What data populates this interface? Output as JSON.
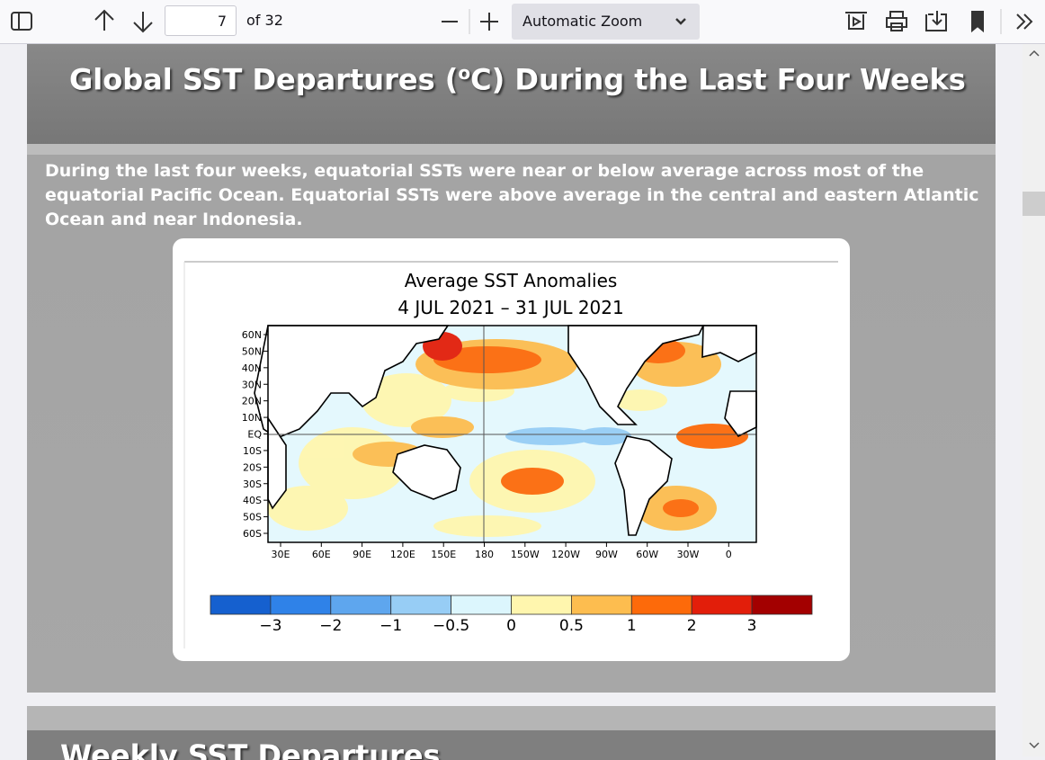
{
  "toolbar": {
    "page_number": "7",
    "page_count": "of 32",
    "zoom": "Automatic Zoom"
  },
  "slide": {
    "title": [
      "Global SST Departures (",
      "o",
      "C) During the Last Four Weeks"
    ],
    "body": [
      "During the last four weeks, equatorial SSTs were near or below average across most of the",
      "equatorial Pacific Ocean.  Equatorial SSTs were above average in the central and eastern Atlantic",
      "Ocean and near Indonesia."
    ],
    "figure": {
      "title": "Average SST Anomalies",
      "period": "4 JUL 2021 – 31 JUL 2021",
      "lat_labels": [
        "60N",
        "50N",
        "40N",
        "30N",
        "20N",
        "10N",
        "EQ",
        "10S",
        "20S",
        "30S",
        "40S",
        "50S",
        "60S"
      ],
      "lon_labels": [
        "30E",
        "60E",
        "90E",
        "120E",
        "150E",
        "180",
        "150W",
        "120W",
        "90W",
        "60W",
        "30W",
        "0"
      ],
      "colorbar": {
        "colors": [
          "#1560cf",
          "#2f82e8",
          "#5ea6ee",
          "#97cdf5",
          "#dcf6fd",
          "#fff6ae",
          "#fdbd4f",
          "#fd6a0a",
          "#e21e0a",
          "#a30000"
        ],
        "labels": [
          "−3",
          "−2",
          "−1",
          "−0.5",
          "0",
          "0.5",
          "1",
          "2",
          "3"
        ]
      }
    }
  },
  "next_slide": {
    "title": "Weekly SST Departures"
  }
}
